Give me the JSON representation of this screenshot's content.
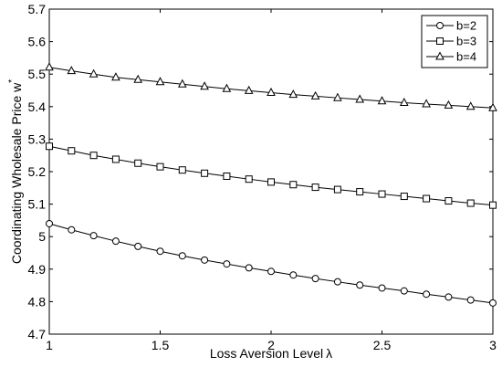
{
  "chart_data": {
    "type": "line",
    "xlabel": "Loss Aversion Level",
    "xlabel_symbol": "λ",
    "ylabel": "Coordinating Wholesale Price w",
    "ylabel_superscript": "*",
    "xlim": [
      1,
      3
    ],
    "ylim": [
      4.7,
      5.7
    ],
    "xticks": [
      "1",
      "1.5",
      "2",
      "2.5",
      "3"
    ],
    "yticks": [
      "4.7",
      "4.8",
      "4.9",
      "5",
      "5.1",
      "5.2",
      "5.3",
      "5.4",
      "5.5",
      "5.6",
      "5.7"
    ],
    "grid": false,
    "legend_position": "top-right",
    "x": [
      1.0,
      1.1,
      1.2,
      1.3,
      1.4,
      1.5,
      1.6,
      1.7,
      1.8,
      1.9,
      2.0,
      2.1,
      2.2,
      2.3,
      2.4,
      2.5,
      2.6,
      2.7,
      2.8,
      2.9,
      3.0
    ],
    "series": [
      {
        "name": "b=2",
        "marker": "circle",
        "values": [
          5.04,
          5.021,
          5.003,
          4.986,
          4.97,
          4.955,
          4.941,
          4.928,
          4.916,
          4.904,
          4.893,
          4.882,
          4.871,
          4.861,
          4.851,
          4.842,
          4.833,
          4.823,
          4.814,
          4.805,
          4.796
        ]
      },
      {
        "name": "b=3",
        "marker": "square",
        "values": [
          5.278,
          5.264,
          5.25,
          5.238,
          5.226,
          5.215,
          5.205,
          5.195,
          5.186,
          5.177,
          5.168,
          5.16,
          5.152,
          5.145,
          5.138,
          5.131,
          5.124,
          5.117,
          5.11,
          5.103,
          5.097
        ]
      },
      {
        "name": "b=4",
        "marker": "triangle",
        "values": [
          5.521,
          5.51,
          5.5,
          5.49,
          5.483,
          5.476,
          5.469,
          5.462,
          5.455,
          5.449,
          5.443,
          5.437,
          5.432,
          5.427,
          5.422,
          5.417,
          5.412,
          5.408,
          5.404,
          5.4,
          5.396
        ]
      }
    ]
  }
}
